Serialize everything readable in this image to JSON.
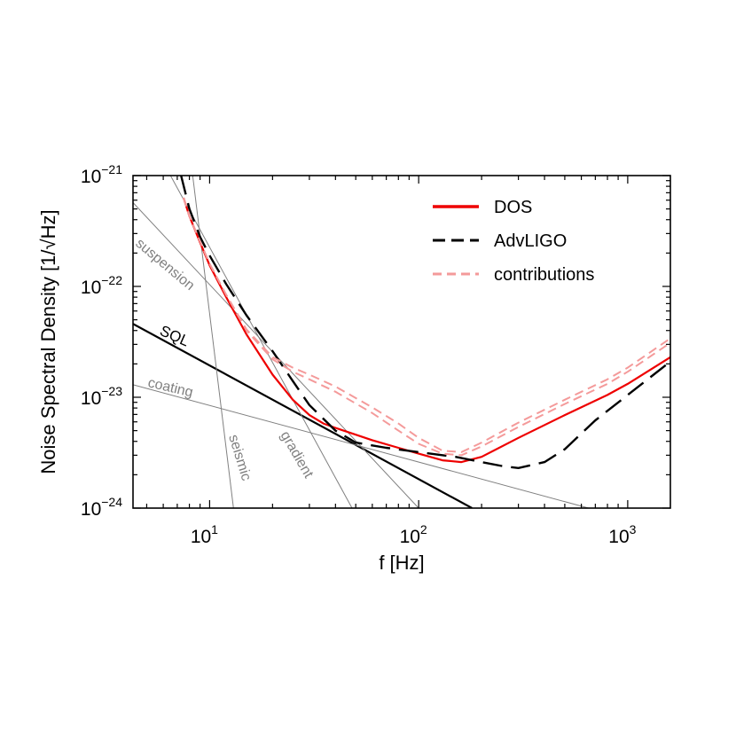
{
  "chart_data": {
    "type": "line",
    "title": "",
    "xlabel": "f [Hz]",
    "ylabel": "Noise Spectral Density [1/√Hz]",
    "xscale": "log",
    "yscale": "log",
    "xlim": [
      4.3,
      1600
    ],
    "ylim": [
      1e-24,
      1e-21
    ],
    "x_ticks": [
      {
        "value": 10,
        "base": "10",
        "exp": "1"
      },
      {
        "value": 100,
        "base": "10",
        "exp": "2"
      },
      {
        "value": 1000,
        "base": "10",
        "exp": "3"
      }
    ],
    "y_ticks": [
      {
        "value": 1e-24,
        "base": "10",
        "exp": "−24"
      },
      {
        "value": 1e-23,
        "base": "10",
        "exp": "−23"
      },
      {
        "value": 1e-22,
        "base": "10",
        "exp": "−22"
      },
      {
        "value": 1e-21,
        "base": "10",
        "exp": "−21"
      }
    ],
    "grid": false,
    "legend": {
      "position": "top-right",
      "entries": [
        {
          "label": "DOS",
          "color": "#ee0000",
          "style": "solid"
        },
        {
          "label": "AdvLIGO",
          "color": "#000000",
          "style": "dashed"
        },
        {
          "label": "contributions",
          "color": "#f49a9a",
          "style": "dashed"
        }
      ]
    },
    "series": [
      {
        "name": "DOS",
        "color": "#ee0000",
        "style": "solid",
        "points": [
          [
            7.5,
            6.3e-22
          ],
          [
            8,
            4.3e-22
          ],
          [
            9,
            2.5e-22
          ],
          [
            10,
            1.55e-22
          ],
          [
            12,
            8e-23
          ],
          [
            15,
            3.7e-23
          ],
          [
            20,
            1.6e-23
          ],
          [
            25,
            9.5e-24
          ],
          [
            30,
            6.9e-24
          ],
          [
            35,
            5.8e-24
          ],
          [
            40,
            5.3e-24
          ],
          [
            50,
            4.6e-24
          ],
          [
            60,
            4.1e-24
          ],
          [
            80,
            3.5e-24
          ],
          [
            100,
            3.1e-24
          ],
          [
            130,
            2.7e-24
          ],
          [
            160,
            2.6e-24
          ],
          [
            200,
            2.9e-24
          ],
          [
            300,
            4.3e-24
          ],
          [
            500,
            6.9e-24
          ],
          [
            800,
            1.05e-23
          ],
          [
            1000,
            1.32e-23
          ],
          [
            1600,
            2.3e-23
          ]
        ]
      },
      {
        "name": "AdvLIGO",
        "color": "#000000",
        "style": "dashed",
        "points": [
          [
            7.3,
            1e-21
          ],
          [
            8,
            5e-22
          ],
          [
            9,
            2.8e-22
          ],
          [
            10,
            1.9e-22
          ],
          [
            12,
            1.05e-22
          ],
          [
            15,
            5.5e-23
          ],
          [
            20,
            2.6e-23
          ],
          [
            25,
            1.4e-23
          ],
          [
            30,
            8.5e-24
          ],
          [
            40,
            5e-24
          ],
          [
            50,
            3.9e-24
          ],
          [
            70,
            3.5e-24
          ],
          [
            100,
            3.2e-24
          ],
          [
            150,
            2.9e-24
          ],
          [
            200,
            2.6e-24
          ],
          [
            250,
            2.4e-24
          ],
          [
            300,
            2.3e-24
          ],
          [
            400,
            2.6e-24
          ],
          [
            500,
            3.4e-24
          ],
          [
            700,
            6.2e-24
          ],
          [
            1000,
            1.05e-23
          ],
          [
            1600,
            2.1e-23
          ]
        ]
      },
      {
        "name": "",
        "color": "#f49a9a",
        "style": "dashed",
        "points": [
          [
            7.5,
            6.3e-22
          ],
          [
            8,
            4.3e-22
          ],
          [
            10,
            1.6e-22
          ],
          [
            12,
            8.4e-23
          ],
          [
            15,
            4e-23
          ],
          [
            20,
            2.2e-23
          ],
          [
            25,
            1.7e-23
          ],
          [
            30,
            1.45e-23
          ],
          [
            40,
            1.12e-23
          ],
          [
            60,
            7.2e-24
          ],
          [
            80,
            5e-24
          ],
          [
            100,
            3.8e-24
          ],
          [
            130,
            3.1e-24
          ],
          [
            160,
            3e-24
          ],
          [
            200,
            3.6e-24
          ],
          [
            300,
            5.4e-24
          ],
          [
            500,
            8.7e-24
          ],
          [
            800,
            1.32e-23
          ],
          [
            1000,
            1.7e-23
          ],
          [
            1600,
            3.1e-23
          ]
        ]
      },
      {
        "name": "",
        "color": "#f49a9a",
        "style": "dashed",
        "points": [
          [
            7.5,
            6.3e-22
          ],
          [
            8,
            4.3e-22
          ],
          [
            10,
            1.6e-22
          ],
          [
            12,
            8.4e-23
          ],
          [
            15,
            4.1e-23
          ],
          [
            20,
            2.3e-23
          ],
          [
            25,
            1.85e-23
          ],
          [
            30,
            1.6e-23
          ],
          [
            40,
            1.25e-23
          ],
          [
            60,
            8.1e-24
          ],
          [
            80,
            5.8e-24
          ],
          [
            100,
            4.3e-24
          ],
          [
            130,
            3.3e-24
          ],
          [
            160,
            3.2e-24
          ],
          [
            200,
            3.9e-24
          ],
          [
            300,
            5.9e-24
          ],
          [
            500,
            9.5e-24
          ],
          [
            800,
            1.45e-23
          ],
          [
            1000,
            1.85e-23
          ],
          [
            1600,
            3.4e-23
          ]
        ]
      }
    ],
    "reference_lines": [
      {
        "label": "SQL",
        "color": "#000000",
        "points": [
          [
            4.3,
            4.6e-23
          ],
          [
            180,
            1e-24
          ]
        ]
      },
      {
        "label": "suspension",
        "color": "#808080",
        "points": [
          [
            4.3,
            5.7e-22
          ],
          [
            100,
            1e-24
          ]
        ]
      },
      {
        "label": "coating",
        "color": "#808080",
        "points": [
          [
            4.3,
            1.3e-23
          ],
          [
            650,
            1e-24
          ]
        ]
      },
      {
        "label": "seismic",
        "color": "#808080",
        "points": [
          [
            8.3,
            1e-21
          ],
          [
            13,
            1e-24
          ]
        ]
      },
      {
        "label": "gradient",
        "color": "#808080",
        "points": [
          [
            6.5,
            1e-21
          ],
          [
            48,
            1e-24
          ]
        ]
      }
    ]
  }
}
